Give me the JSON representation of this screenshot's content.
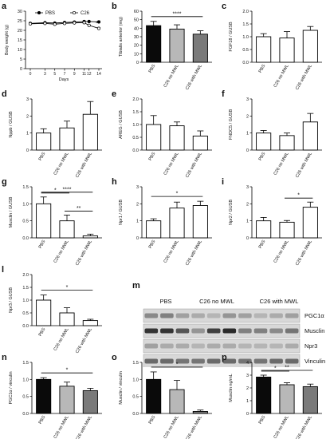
{
  "chart_data": [
    {
      "id": "a",
      "type": "line",
      "panel_label": "a",
      "ylabel": "Body weight (g)",
      "xlabel": "Days",
      "x": [
        0,
        3,
        5,
        7,
        9,
        11,
        12,
        14
      ],
      "xticks": [
        "0",
        "3",
        "5",
        "7",
        "9",
        "11",
        "12",
        "14"
      ],
      "ylim": [
        0,
        30
      ],
      "yticks": [
        0,
        5,
        10,
        15,
        20,
        25,
        30
      ],
      "legend": {
        "position": "top",
        "entries": [
          "PBS",
          "C26"
        ]
      },
      "series": [
        {
          "name": "PBS",
          "marker": "filled-circle",
          "values": [
            23.6,
            24.0,
            23.8,
            24.1,
            24.3,
            24.6,
            24.6,
            24.4
          ]
        },
        {
          "name": "C26",
          "marker": "open-circle",
          "values": [
            23.4,
            23.6,
            23.2,
            23.6,
            23.9,
            24.0,
            22.6,
            21.0
          ]
        }
      ],
      "annotations": [
        {
          "x": 14,
          "text": "*"
        }
      ]
    },
    {
      "id": "b",
      "type": "bar",
      "panel_label": "b",
      "ylabel": "Tibialis anterior (mg)",
      "categories": [
        "PBS",
        "C26 no MWL",
        "C26 with MWL"
      ],
      "values": [
        43,
        39,
        33
      ],
      "errors": [
        5,
        5,
        4
      ],
      "bar_colors": [
        "#0a0a0a",
        "#b8b8b8",
        "#7a7a7a"
      ],
      "ylim": [
        0,
        60
      ],
      "yticks": [
        0,
        10,
        20,
        30,
        40,
        50,
        60
      ],
      "significance": [
        {
          "from": 0,
          "to": 2,
          "text": "****"
        }
      ]
    },
    {
      "id": "c",
      "type": "bar",
      "panel_label": "c",
      "ylabel": "FGF18 / GUSB",
      "categories": [
        "PBS",
        "C26 no MWL",
        "C26 with MWL"
      ],
      "values": [
        1.0,
        0.95,
        1.25
      ],
      "errors": [
        0.12,
        0.25,
        0.15
      ],
      "bar_colors": [
        "#ffffff",
        "#ffffff",
        "#ffffff"
      ],
      "ylim": [
        0,
        2
      ],
      "yticks": [
        0,
        0.5,
        1,
        1.5,
        2
      ],
      "yticklabels": [
        "0.0",
        "0.5",
        "1.0",
        "1.5",
        "2.0"
      ],
      "significance": []
    },
    {
      "id": "d",
      "type": "bar",
      "panel_label": "d",
      "ylabel": "Nppb / GUSB",
      "categories": [
        "PBS",
        "C26 no MWL",
        "C26 with MWL"
      ],
      "values": [
        1.0,
        1.3,
        2.1
      ],
      "errors": [
        0.25,
        0.4,
        0.75
      ],
      "bar_colors": [
        "#ffffff",
        "#ffffff",
        "#ffffff"
      ],
      "ylim": [
        0,
        3
      ],
      "yticks": [
        0,
        1,
        2,
        3
      ],
      "yticklabels": [
        "0",
        "1",
        "2",
        "3"
      ],
      "significance": []
    },
    {
      "id": "e",
      "type": "bar",
      "panel_label": "e",
      "ylabel": "AREG / GUSB",
      "categories": [
        "PBS",
        "C26 no MWL",
        "C26 with MWL"
      ],
      "values": [
        1.0,
        0.95,
        0.55
      ],
      "errors": [
        0.35,
        0.15,
        0.2
      ],
      "bar_colors": [
        "#ffffff",
        "#ffffff",
        "#ffffff"
      ],
      "ylim": [
        0,
        2
      ],
      "yticks": [
        0,
        0.5,
        1,
        1.5,
        2
      ],
      "yticklabels": [
        "0.0",
        "0.5",
        "1.0",
        "1.5",
        "2.0"
      ],
      "significance": []
    },
    {
      "id": "f",
      "type": "bar",
      "panel_label": "f",
      "ylabel": "FNDC5 / GUSB",
      "categories": [
        "PBS",
        "C26 no MWL",
        "C26 with MWL"
      ],
      "values": [
        1.0,
        0.85,
        1.65
      ],
      "errors": [
        0.15,
        0.15,
        0.5
      ],
      "bar_colors": [
        "#ffffff",
        "#ffffff",
        "#ffffff"
      ],
      "ylim": [
        0,
        3
      ],
      "yticks": [
        0,
        1,
        2,
        3
      ],
      "yticklabels": [
        "0",
        "1",
        "2",
        "3"
      ],
      "significance": []
    },
    {
      "id": "g",
      "type": "bar",
      "panel_label": "g",
      "ylabel": "Musclin / GUSB",
      "categories": [
        "PBS",
        "C26 no MWL",
        "C26 with MWL"
      ],
      "values": [
        1.0,
        0.5,
        0.06
      ],
      "errors": [
        0.2,
        0.17,
        0.05
      ],
      "bar_colors": [
        "#ffffff",
        "#ffffff",
        "#ffffff"
      ],
      "ylim": [
        0,
        1.5
      ],
      "yticks": [
        0,
        0.5,
        1,
        1.5
      ],
      "yticklabels": [
        "0.0",
        "0.5",
        "1.0",
        "1.5"
      ],
      "significance": [
        {
          "from": 0,
          "to": 1,
          "text": "*"
        },
        {
          "from": 1,
          "to": 2,
          "text": "**"
        },
        {
          "from": 0,
          "to": 2,
          "text": "****"
        }
      ]
    },
    {
      "id": "h",
      "type": "bar",
      "panel_label": "h",
      "ylabel": "Npr1 / GUSB",
      "categories": [
        "PBS",
        "C26 no MWL",
        "C26 with MWL"
      ],
      "values": [
        1.0,
        1.75,
        1.9
      ],
      "errors": [
        0.12,
        0.35,
        0.25
      ],
      "bar_colors": [
        "#ffffff",
        "#ffffff",
        "#ffffff"
      ],
      "ylim": [
        0,
        3
      ],
      "yticks": [
        0,
        1,
        2,
        3
      ],
      "yticklabels": [
        "0",
        "1",
        "2",
        "3"
      ],
      "significance": [
        {
          "from": 0,
          "to": 2,
          "text": "*"
        }
      ]
    },
    {
      "id": "i",
      "type": "bar",
      "panel_label": "i",
      "ylabel": "Npr2 / GUSB",
      "categories": [
        "PBS",
        "C26 no MWL",
        "C26 with MWL"
      ],
      "values": [
        1.0,
        0.92,
        1.8
      ],
      "errors": [
        0.2,
        0.1,
        0.3
      ],
      "bar_colors": [
        "#ffffff",
        "#ffffff",
        "#ffffff"
      ],
      "ylim": [
        0,
        3
      ],
      "yticks": [
        0,
        1,
        2,
        3
      ],
      "yticklabels": [
        "0",
        "1",
        "2",
        "3"
      ],
      "significance": [
        {
          "from": 1,
          "to": 2,
          "text": "*"
        }
      ]
    },
    {
      "id": "l",
      "type": "bar",
      "panel_label": "l",
      "ylabel": "Npr3 / GUSB",
      "categories": [
        "PBS",
        "C26 no MWL",
        "C26 with MWL"
      ],
      "values": [
        1.0,
        0.5,
        0.2
      ],
      "errors": [
        0.2,
        0.2,
        0.05
      ],
      "bar_colors": [
        "#ffffff",
        "#ffffff",
        "#ffffff"
      ],
      "ylim": [
        0,
        2
      ],
      "yticks": [
        0,
        0.5,
        1,
        1.5,
        2
      ],
      "yticklabels": [
        "0.0",
        "0.5",
        "1.0",
        "1.5",
        "2.0"
      ],
      "significance": [
        {
          "from": 0,
          "to": 2,
          "text": "*"
        }
      ]
    },
    {
      "id": "n",
      "type": "bar",
      "panel_label": "n",
      "ylabel": "PGC1α / vinculin",
      "categories": [
        "PBS",
        "C26 no MWL",
        "C26 with MWL"
      ],
      "values": [
        1.0,
        0.8,
        0.67
      ],
      "errors": [
        0.05,
        0.12,
        0.07
      ],
      "bar_colors": [
        "#0a0a0a",
        "#b8b8b8",
        "#7a7a7a"
      ],
      "ylim": [
        0,
        1.5
      ],
      "yticks": [
        0,
        0.5,
        1,
        1.5
      ],
      "yticklabels": [
        "0.0",
        "0.5",
        "1.0",
        "1.5"
      ],
      "significance": [
        {
          "from": 0,
          "to": 2,
          "text": "*"
        }
      ]
    },
    {
      "id": "o",
      "type": "bar",
      "panel_label": "o",
      "ylabel": "Musclin / vinculin",
      "categories": [
        "PBS",
        "C26 no MWL",
        "C26 with MWL"
      ],
      "values": [
        1.0,
        0.7,
        0.06
      ],
      "errors": [
        0.22,
        0.27,
        0.04
      ],
      "bar_colors": [
        "#0a0a0a",
        "#b8b8b8",
        "#7a7a7a"
      ],
      "ylim": [
        0,
        1.5
      ],
      "yticks": [
        0,
        0.5,
        1,
        1.5
      ],
      "yticklabels": [
        "0.0",
        "0.5",
        "1.0",
        "1.5"
      ],
      "significance": [
        {
          "from": 0,
          "to": 2,
          "text": "*"
        }
      ]
    },
    {
      "id": "p",
      "type": "bar",
      "panel_label": "p",
      "ylabel": "Musclin ng/mL",
      "categories": [
        "PBS",
        "C26 no MWL",
        "C26 with MWL"
      ],
      "values": [
        2.85,
        2.25,
        2.1
      ],
      "errors": [
        0.15,
        0.15,
        0.2
      ],
      "bar_colors": [
        "#0a0a0a",
        "#b8b8b8",
        "#7a7a7a"
      ],
      "ylim": [
        0,
        4
      ],
      "yticks": [
        0,
        1,
        2,
        3,
        4
      ],
      "yticklabels": [
        "0",
        "1",
        "2",
        "3",
        "4"
      ],
      "significance": [
        {
          "from": 0,
          "to": 1,
          "text": "*"
        },
        {
          "from": 0,
          "to": 2,
          "text": "**"
        }
      ]
    }
  ],
  "blot": {
    "panel_label": "m",
    "groups": [
      "PBS",
      "C26 no MWL",
      "C26 with MWL"
    ],
    "rows": [
      {
        "label": "PGC1α",
        "intensities": [
          0.45,
          0.5,
          0.35,
          0.3,
          0.25,
          0.4,
          0.35,
          0.25,
          0.3,
          0.35
        ]
      },
      {
        "label": "Musclin",
        "intensities": [
          0.85,
          0.85,
          0.7,
          0.4,
          0.8,
          0.9,
          0.5,
          0.5,
          0.45,
          0.55
        ]
      },
      {
        "label": "Npr3",
        "intensities": [
          0.35,
          0.3,
          0.3,
          0.25,
          0.3,
          0.3,
          0.25,
          0.25,
          0.25,
          0.3
        ]
      },
      {
        "label": "Vinculin",
        "intensities": [
          0.6,
          0.6,
          0.55,
          0.55,
          0.6,
          0.6,
          0.55,
          0.55,
          0.6,
          0.6
        ]
      }
    ]
  }
}
